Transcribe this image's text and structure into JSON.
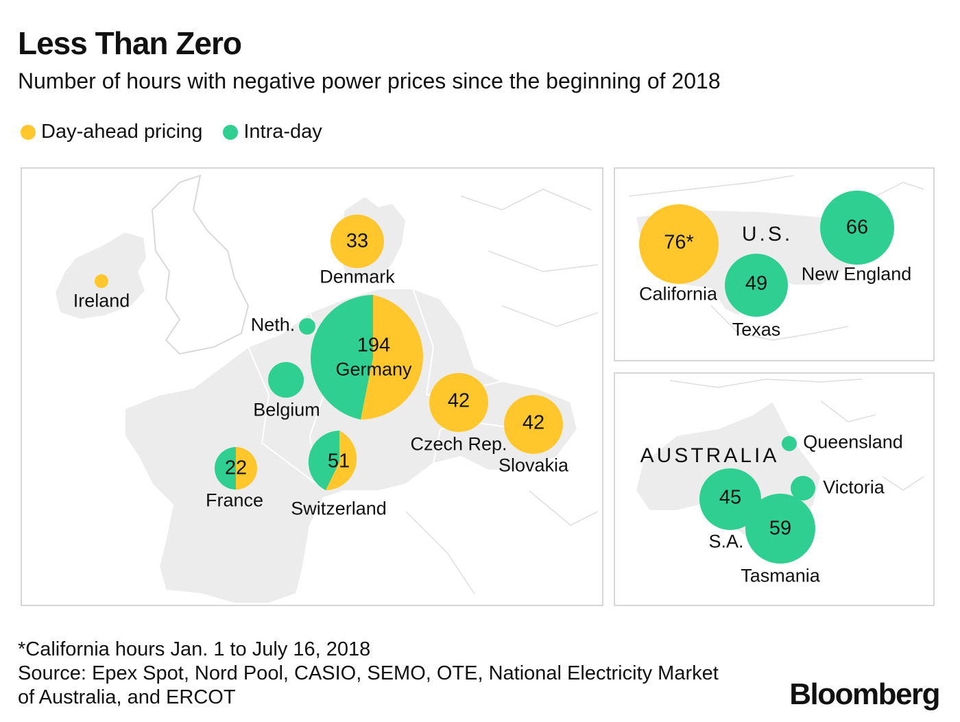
{
  "title": "Less Than Zero",
  "subtitle": "Number of hours with negative power prices since the beginning of 2018",
  "legend": {
    "day_ahead": "Day-ahead pricing",
    "intraday": "Intra-day"
  },
  "colors": {
    "day_ahead": "#ffc72c",
    "intraday": "#2fcf92",
    "land": "#ececec",
    "border": "#ffffff"
  },
  "europe": {
    "ireland": {
      "label": "Ireland",
      "value": ""
    },
    "denmark": {
      "label": "Denmark",
      "value": "33"
    },
    "netherlands": {
      "label": "Neth.",
      "value": ""
    },
    "germany": {
      "label": "Germany",
      "value": "194"
    },
    "belgium": {
      "label": "Belgium",
      "value": ""
    },
    "france": {
      "label": "France",
      "value": "22"
    },
    "switzerland": {
      "label": "Switzerland",
      "value": "51"
    },
    "czech": {
      "label": "Czech Rep.",
      "value": "42"
    },
    "slovakia": {
      "label": "Slovakia",
      "value": "42"
    }
  },
  "us": {
    "country_label": "U.S.",
    "california": {
      "label": "California",
      "value": "76*"
    },
    "texas": {
      "label": "Texas",
      "value": "49"
    },
    "new_england": {
      "label": "New England",
      "value": "66"
    }
  },
  "australia": {
    "country_label": "AUSTRALIA",
    "queensland": {
      "label": "Queensland",
      "value": ""
    },
    "victoria": {
      "label": "Victoria",
      "value": ""
    },
    "sa": {
      "label": "S.A.",
      "value": "45"
    },
    "tasmania": {
      "label": "Tasmania",
      "value": "59"
    }
  },
  "footnote": {
    "line1": "*California hours Jan. 1 to July 16, 2018",
    "line2": "Source: Epex Spot, Nord Pool, CASIO, SEMO, OTE, National Electricity Market",
    "line3": "of Australia, and ERCOT"
  },
  "brand": "Bloomberg"
}
